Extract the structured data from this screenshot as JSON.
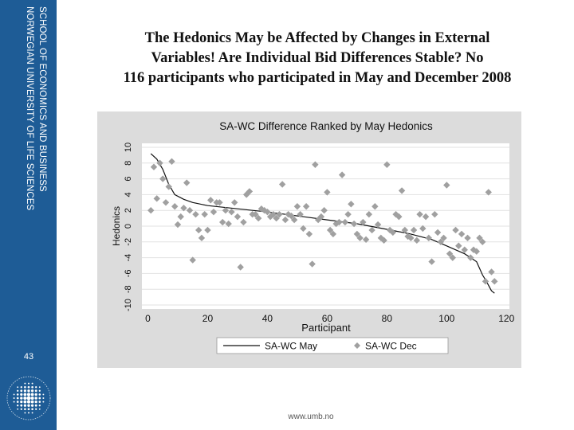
{
  "sidebar": {
    "school_name": "SCHOOL OF ECONOMICS AND BUSINESS",
    "university_name": "NORWEGIAN UNIVERSITY OF LIFE SCIENCES",
    "slide_number": "43",
    "logo_icon": "university-seal-icon"
  },
  "title": {
    "line1": "The Hedonics May be Affected by Changes in External",
    "line2": "Variables! Are Individual Bid Differences Stable? No",
    "line3": "116 participants who participated in May and December 2008"
  },
  "footer": {
    "url": "www.umb.no"
  },
  "colors": {
    "sidebar": "#1e5c96",
    "chart_background": "#dcdcdc",
    "marker": "#a0a0a0",
    "line": "#111111"
  },
  "chart_data": {
    "type": "scatter",
    "title": "SA-WC Difference Ranked by May Hedonics",
    "xlabel": "Participant",
    "ylabel": "Hedonics",
    "xlim": [
      -2,
      121
    ],
    "ylim": [
      -10.5,
      10.5
    ],
    "x_ticks": [
      0,
      20,
      40,
      60,
      80,
      100,
      120
    ],
    "y_ticks": [
      -10,
      -8,
      -6,
      -4,
      -2,
      0,
      2,
      4,
      6,
      8,
      10
    ],
    "grid": "horizontal",
    "legend_position": "bottom",
    "series": [
      {
        "name": "SA-WC May",
        "style": "line",
        "x": [
          1,
          3,
          5,
          7,
          9,
          12,
          15,
          20,
          30,
          40,
          50,
          60,
          70,
          80,
          88,
          95,
          100,
          106,
          110,
          112,
          113,
          114,
          115,
          116
        ],
        "y": [
          9.2,
          8.5,
          7.2,
          5.3,
          4.0,
          3.4,
          3.0,
          2.6,
          2.2,
          1.8,
          1.3,
          0.8,
          0.3,
          -0.4,
          -1.0,
          -1.7,
          -2.5,
          -3.5,
          -4.5,
          -6.2,
          -6.8,
          -7.5,
          -8.2,
          -8.5
        ]
      },
      {
        "name": "SA-WC Dec",
        "style": "marker",
        "x": [
          1,
          2,
          3,
          4,
          5,
          6,
          7,
          8,
          9,
          10,
          11,
          12,
          13,
          14,
          15,
          16,
          17,
          18,
          19,
          20,
          21,
          22,
          23,
          24,
          25,
          26,
          27,
          28,
          29,
          30,
          31,
          32,
          33,
          34,
          35,
          36,
          37,
          38,
          39,
          40,
          41,
          42,
          43,
          44,
          45,
          46,
          47,
          48,
          49,
          50,
          51,
          52,
          53,
          54,
          55,
          56,
          57,
          58,
          59,
          60,
          61,
          62,
          63,
          64,
          65,
          66,
          67,
          68,
          69,
          70,
          71,
          72,
          73,
          74,
          75,
          76,
          77,
          78,
          79,
          80,
          81,
          82,
          83,
          84,
          85,
          86,
          87,
          88,
          89,
          90,
          91,
          92,
          93,
          94,
          95,
          96,
          97,
          98,
          99,
          100,
          101,
          102,
          103,
          104,
          105,
          106,
          107,
          108,
          109,
          110,
          111,
          112,
          113,
          114,
          115,
          116
        ],
        "y": [
          2.0,
          7.5,
          3.5,
          8.0,
          6.0,
          3.0,
          5.0,
          8.2,
          2.5,
          0.2,
          1.2,
          2.3,
          5.5,
          2.0,
          -4.3,
          1.5,
          -0.5,
          -1.5,
          1.5,
          -0.5,
          3.3,
          1.8,
          3.0,
          3.0,
          0.5,
          2.0,
          0.3,
          1.8,
          3.0,
          1.2,
          -5.2,
          0.5,
          4.0,
          4.4,
          1.5,
          1.5,
          1.0,
          2.2,
          2.0,
          1.8,
          1.2,
          1.5,
          1.0,
          1.5,
          5.3,
          0.8,
          1.5,
          1.3,
          0.8,
          2.5,
          1.5,
          -0.3,
          2.5,
          -1.0,
          -4.8,
          7.8,
          0.8,
          1.2,
          2.0,
          4.3,
          -0.5,
          -1.0,
          0.3,
          0.5,
          6.5,
          0.5,
          1.5,
          2.8,
          0.3,
          -1.0,
          -1.5,
          0.5,
          -1.7,
          1.5,
          -0.5,
          2.5,
          0.2,
          -1.5,
          -1.8,
          7.8,
          -0.5,
          -0.8,
          1.5,
          1.2,
          4.5,
          -0.5,
          -1.3,
          -1.5,
          -0.5,
          -1.8,
          1.5,
          -0.3,
          1.2,
          -1.5,
          -4.5,
          1.5,
          -0.8,
          -2.0,
          -1.5,
          5.2,
          -3.5,
          -4.0,
          -0.5,
          -2.5,
          -1.0,
          -3.0,
          -1.5,
          -4.0,
          -3.0,
          -3.2,
          -1.5,
          -2.0,
          -7.0,
          4.3,
          -5.8,
          -7.0
        ]
      }
    ]
  }
}
